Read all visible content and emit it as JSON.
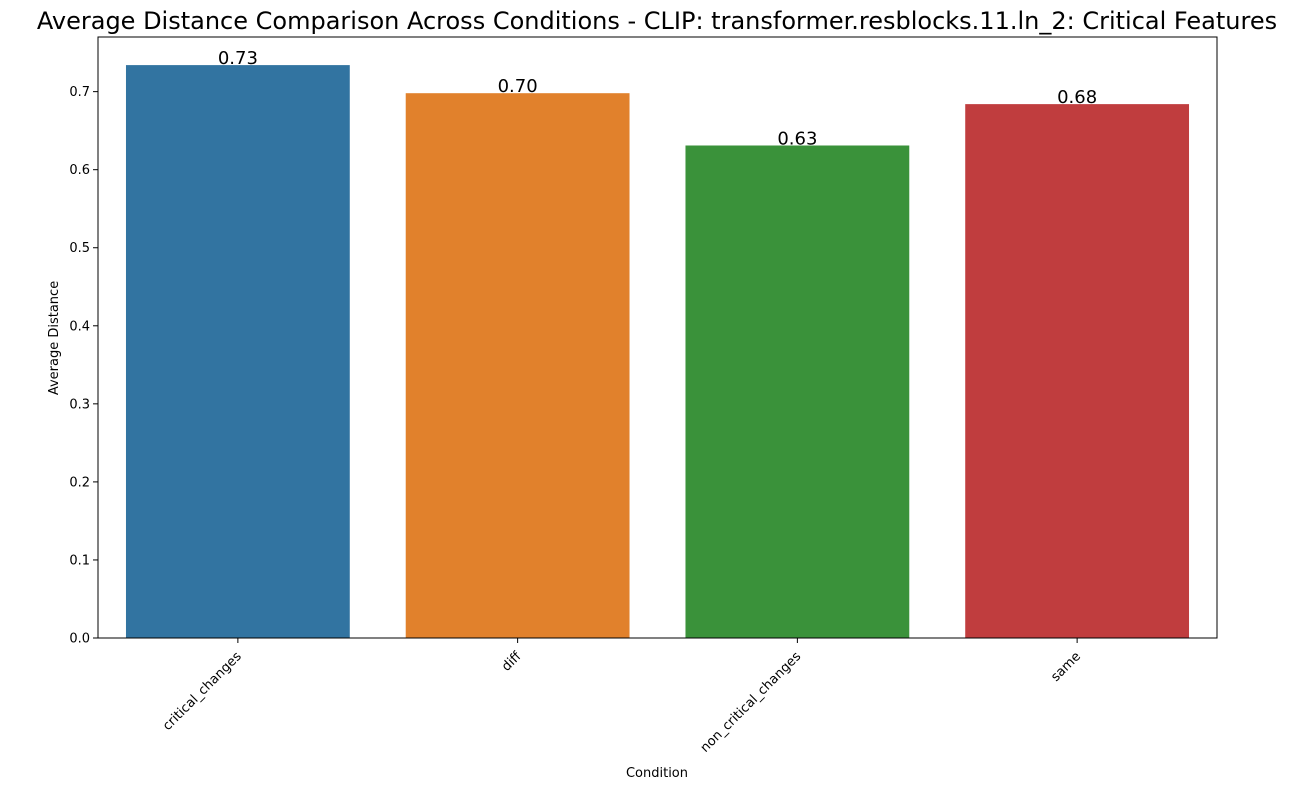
{
  "chart_data": {
    "type": "bar",
    "title": "Average Distance Comparison Across Conditions - CLIP: transformer.resblocks.11.ln_2: Critical Features",
    "xlabel": "Condition",
    "ylabel": "Average Distance",
    "categories": [
      "critical_changes",
      "diff",
      "non_critical_changes",
      "same"
    ],
    "values": [
      0.734,
      0.698,
      0.631,
      0.684
    ],
    "value_labels": [
      "0.73",
      "0.70",
      "0.63",
      "0.68"
    ],
    "colors": [
      "#3274a1",
      "#e1812c",
      "#3a923a",
      "#c03d3e"
    ],
    "ylim": [
      0,
      0.77
    ],
    "yticks": [
      0.0,
      0.1,
      0.2,
      0.3,
      0.4,
      0.5,
      0.6,
      0.7
    ],
    "ytick_labels": [
      "0.0",
      "0.1",
      "0.2",
      "0.3",
      "0.4",
      "0.5",
      "0.6",
      "0.7"
    ],
    "grid": false,
    "legend": "none"
  }
}
